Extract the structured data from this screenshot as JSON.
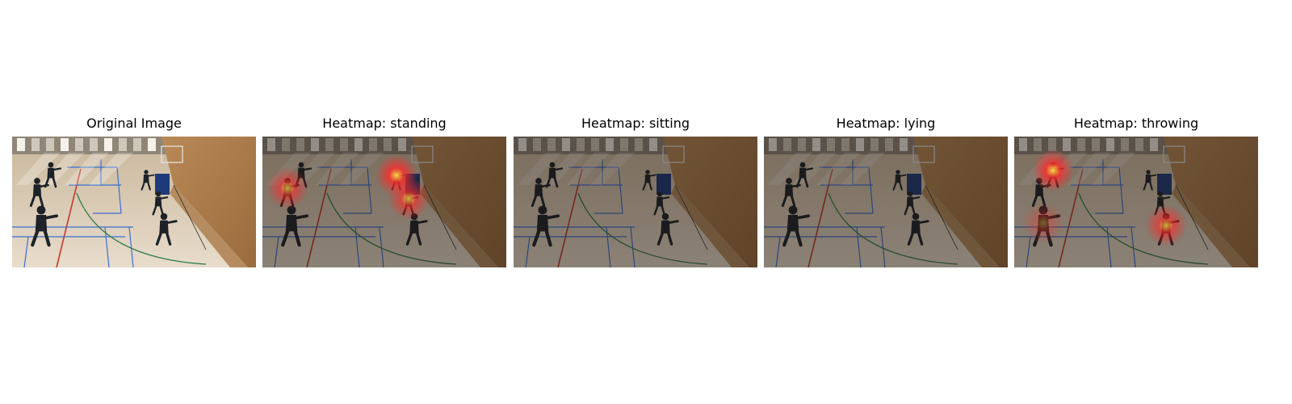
{
  "panels": [
    {
      "title": "Original Image",
      "kind": "original",
      "dim": 0,
      "heat": []
    },
    {
      "title": "Heatmap: standing",
      "kind": "heatmap",
      "dim": 0.45,
      "heat": [
        {
          "target": "person-left-standing",
          "intensity": 0.75
        },
        {
          "target": "person-near-basket",
          "intensity": 1.0
        },
        {
          "target": "person-center-running",
          "intensity": 0.8
        }
      ]
    },
    {
      "title": "Heatmap: sitting",
      "kind": "heatmap",
      "dim": 0.45,
      "heat": []
    },
    {
      "title": "Heatmap: lying",
      "kind": "heatmap",
      "dim": 0.45,
      "heat": []
    },
    {
      "title": "Heatmap: throwing",
      "kind": "heatmap",
      "dim": 0.45,
      "heat": [
        {
          "target": "person-back-left",
          "intensity": 1.0
        },
        {
          "target": "person-right-throwing",
          "intensity": 0.8
        },
        {
          "target": "person-front-left",
          "intensity": 0.4
        }
      ]
    }
  ],
  "colors": {
    "floor_light": "#e8dccb",
    "floor_dark": "#c9b79c",
    "wall_wood": "#9a6b3d",
    "court_blue": "#3a6fd0",
    "court_red": "#c0392b",
    "court_green": "#2f7d4a",
    "player_dark": "#1d2228",
    "heat_red": "#ff2a2a",
    "heat_yellow": "#ffe94a"
  }
}
